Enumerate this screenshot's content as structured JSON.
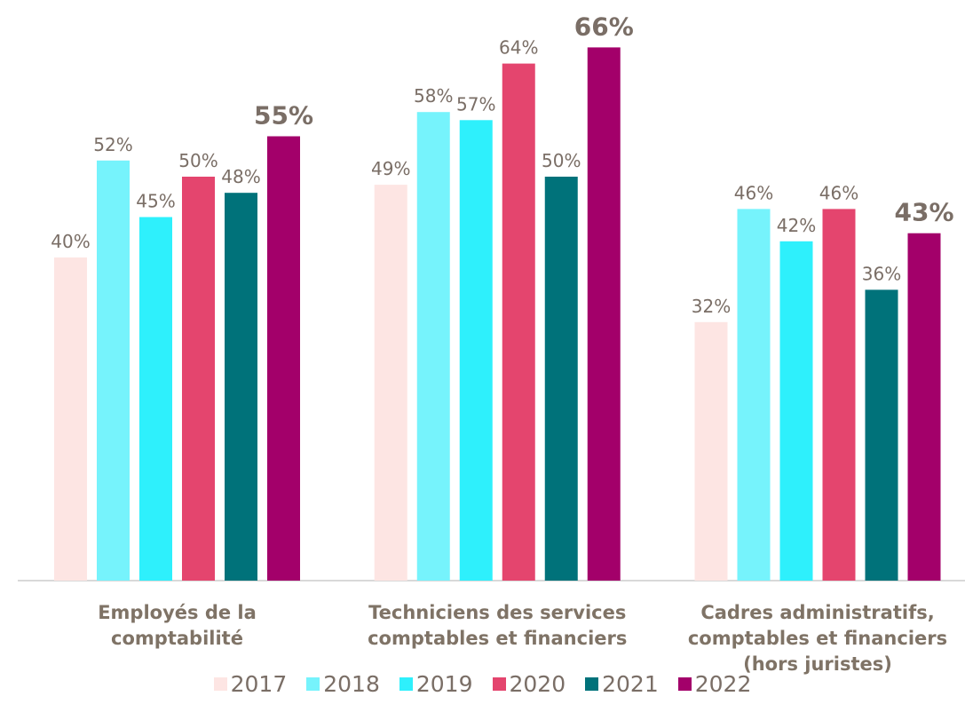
{
  "chart_data": {
    "type": "bar",
    "categories": [
      "Employés de la\ncomptabilité",
      "Techniciens des services\ncomptables et financiers",
      "Cadres administratifs,\ncomptables et financiers\n(hors juristes)"
    ],
    "series": [
      {
        "name": "2017",
        "color": "#fde5e3",
        "values": [
          40,
          49,
          32
        ],
        "value_labels": [
          "40%",
          "49%",
          "32%"
        ]
      },
      {
        "name": "2018",
        "color": "#76f3fc",
        "values": [
          52,
          58,
          46
        ],
        "value_labels": [
          "52%",
          "58%",
          "46%"
        ]
      },
      {
        "name": "2019",
        "color": "#2ef0fc",
        "values": [
          45,
          57,
          42
        ],
        "value_labels": [
          "45%",
          "57%",
          "42%"
        ]
      },
      {
        "name": "2020",
        "color": "#e4456e",
        "values": [
          50,
          64,
          46
        ],
        "value_labels": [
          "50%",
          "64%",
          "46%"
        ]
      },
      {
        "name": "2021",
        "color": "#00727a",
        "values": [
          48,
          50,
          36
        ],
        "value_labels": [
          "48%",
          "50%",
          "36%"
        ]
      },
      {
        "name": "2022",
        "color": "#a3006a",
        "values": [
          55,
          66,
          43
        ],
        "value_labels": [
          "55%",
          "66%",
          "43%"
        ]
      }
    ],
    "ylim": [
      0,
      70
    ],
    "legend": "bottom"
  }
}
